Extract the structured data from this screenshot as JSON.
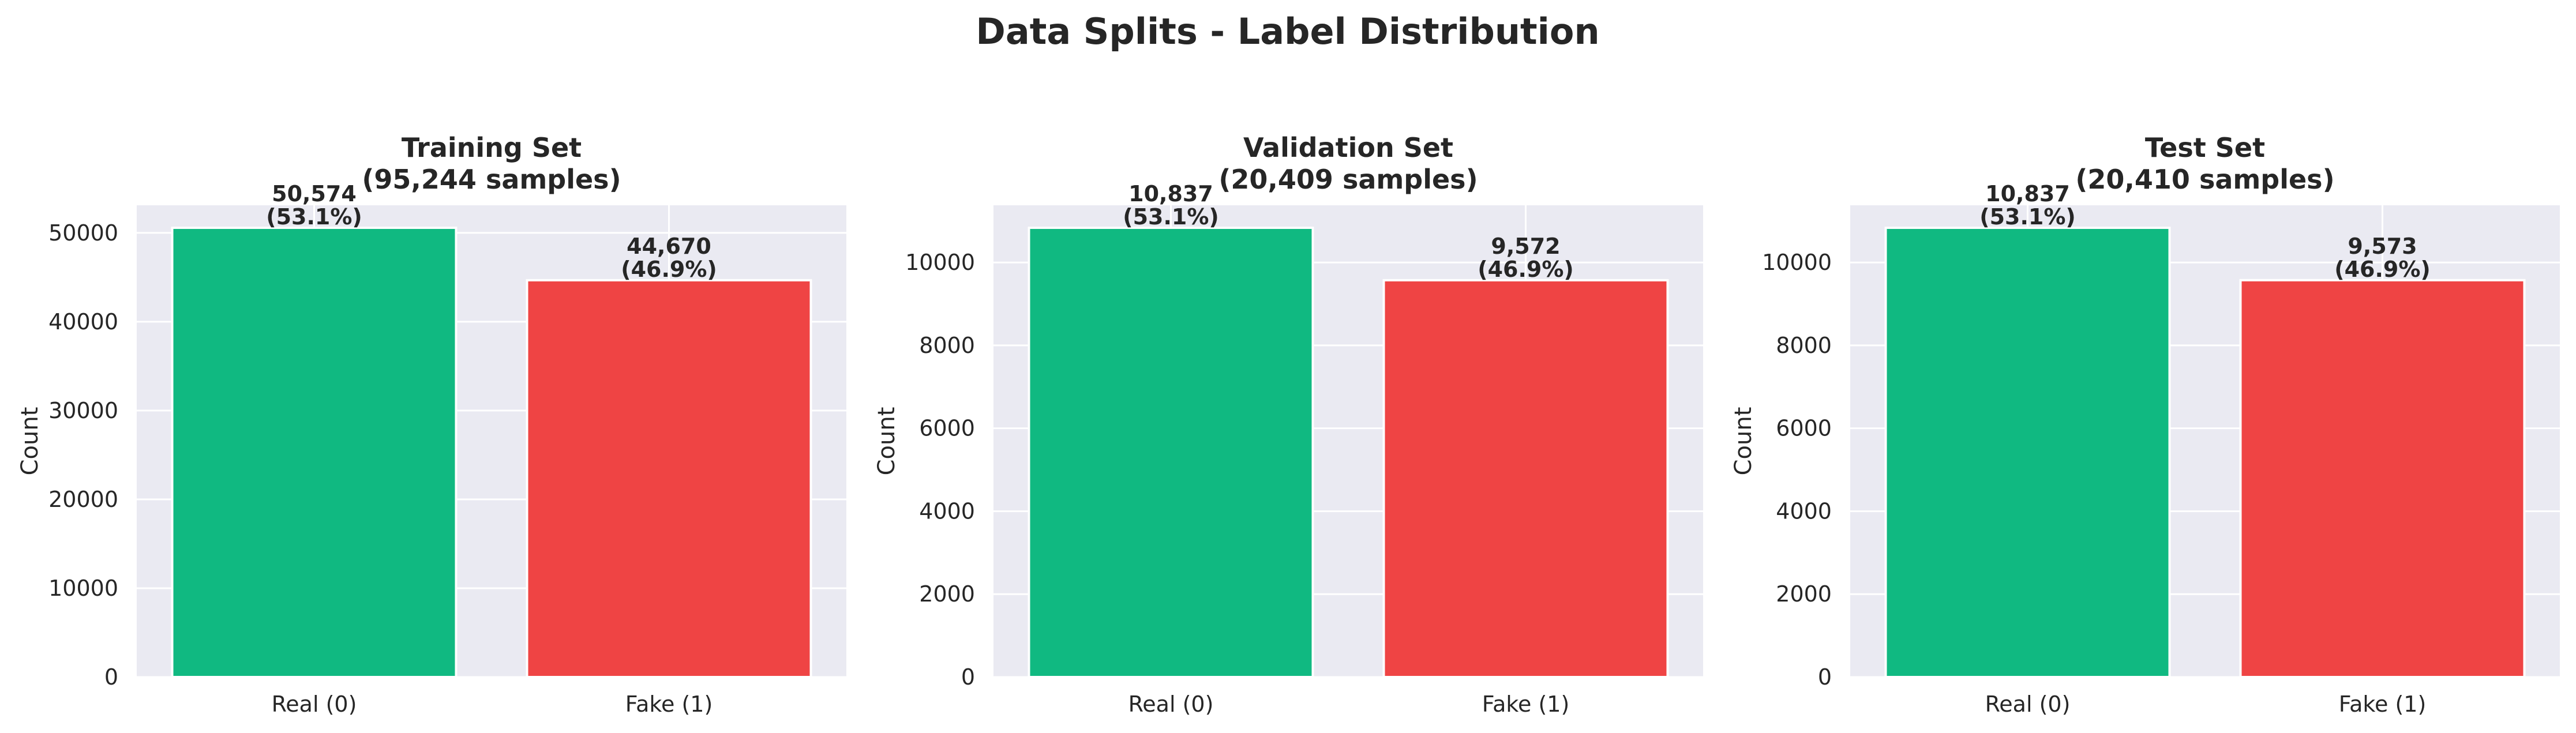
{
  "figure": {
    "suptitle": "Data Splits - Label Distribution"
  },
  "colors": {
    "real": "#10b981",
    "fake": "#ef4444",
    "plot_background": "#eaeaf2",
    "grid": "#ffffff",
    "text": "#262626"
  },
  "chart_data": [
    {
      "type": "bar",
      "title_line1": "Training Set",
      "title_line2": "(95,244 samples)",
      "ylabel": "Count",
      "categories": [
        "Real (0)",
        "Fake (1)"
      ],
      "values": [
        50574,
        44670
      ],
      "value_labels": [
        "50,574",
        "44,670"
      ],
      "percent_labels": [
        "(53.1%)",
        "(46.9%)"
      ],
      "ylim": [
        0,
        53103
      ],
      "yticks": [
        0,
        10000,
        20000,
        30000,
        40000,
        50000
      ],
      "grid": true
    },
    {
      "type": "bar",
      "title_line1": "Validation Set",
      "title_line2": "(20,409 samples)",
      "ylabel": "Count",
      "categories": [
        "Real (0)",
        "Fake (1)"
      ],
      "values": [
        10837,
        9572
      ],
      "value_labels": [
        "10,837",
        "9,572"
      ],
      "percent_labels": [
        "(53.1%)",
        "(46.9%)"
      ],
      "ylim": [
        0,
        11379
      ],
      "yticks": [
        0,
        2000,
        4000,
        6000,
        8000,
        10000
      ],
      "grid": true
    },
    {
      "type": "bar",
      "title_line1": "Test Set",
      "title_line2": "(20,410 samples)",
      "ylabel": "Count",
      "categories": [
        "Real (0)",
        "Fake (1)"
      ],
      "values": [
        10837,
        9573
      ],
      "value_labels": [
        "10,837",
        "9,573"
      ],
      "percent_labels": [
        "(53.1%)",
        "(46.9%)"
      ],
      "ylim": [
        0,
        11379
      ],
      "yticks": [
        0,
        2000,
        4000,
        6000,
        8000,
        10000
      ],
      "grid": true
    }
  ]
}
